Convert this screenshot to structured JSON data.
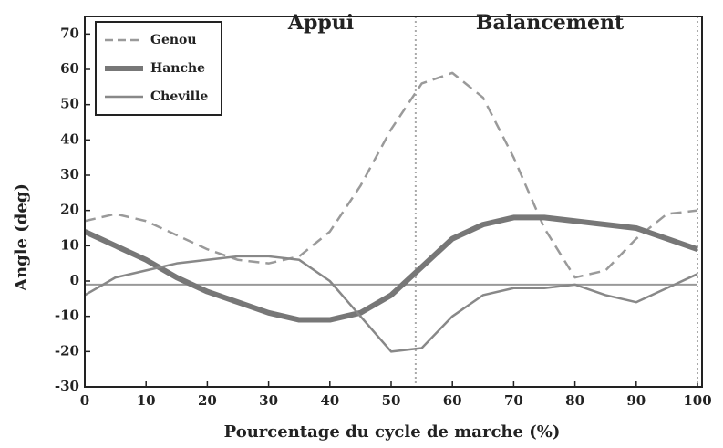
{
  "chart_data": {
    "type": "line",
    "annotations": [
      "Appui",
      "Balancement"
    ],
    "x_label": "Pourcentage du cycle de marche (%)",
    "y_label": "Angle (deg)",
    "x": [
      0,
      5,
      10,
      15,
      20,
      25,
      30,
      35,
      40,
      45,
      50,
      55,
      60,
      65,
      70,
      75,
      80,
      85,
      90,
      95,
      100
    ],
    "series": [
      {
        "name": "Genou",
        "color": "#9a9a9a",
        "style": "dashed",
        "values": [
          17,
          19,
          17,
          13,
          9,
          6,
          5,
          7,
          14,
          27,
          43,
          56,
          59,
          52,
          35,
          15,
          1,
          3,
          12,
          19,
          20
        ]
      },
      {
        "name": "Hanche",
        "color": "#777777",
        "style": "thick",
        "values": [
          14,
          10,
          6,
          1,
          -3,
          -6,
          -9,
          -11,
          -11,
          -9,
          -4,
          4,
          12,
          16,
          18,
          18,
          17,
          16,
          15,
          12,
          9
        ]
      },
      {
        "name": "Cheville",
        "color": "#888888",
        "style": "solid",
        "values": [
          -4,
          1,
          3,
          5,
          6,
          7,
          7,
          6,
          0,
          -10,
          -20,
          -19,
          -10,
          -4,
          -2,
          -2,
          -1,
          -4,
          -6,
          -2,
          2
        ]
      }
    ],
    "xlim": [
      0,
      100
    ],
    "xticks": [
      0,
      10,
      20,
      30,
      40,
      50,
      60,
      70,
      80,
      90,
      100
    ],
    "ylim": [
      -30,
      75
    ],
    "yticks": [
      -30,
      -20,
      -10,
      0,
      10,
      20,
      30,
      40,
      50,
      60,
      70
    ],
    "vlines": [
      54,
      100
    ],
    "hline": -1,
    "legend": "top-left"
  }
}
